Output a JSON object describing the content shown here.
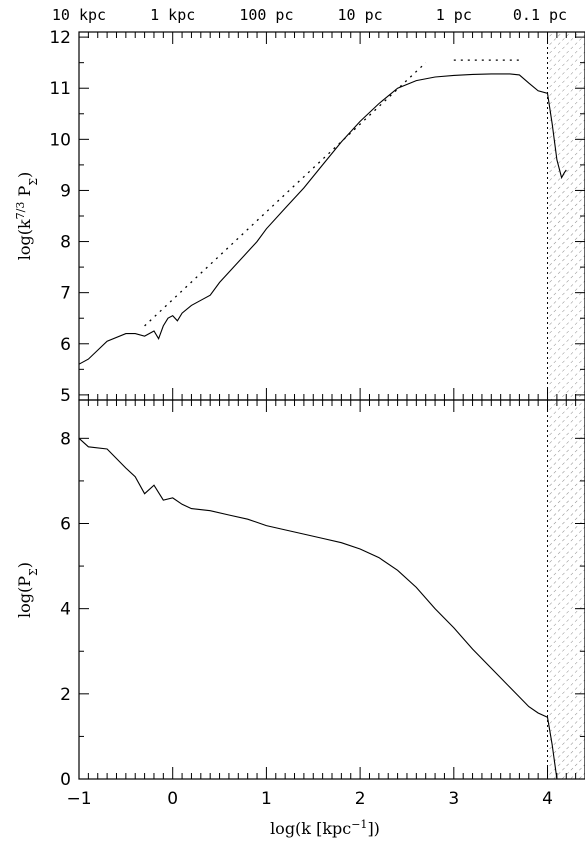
{
  "chart_data": [
    {
      "type": "line",
      "panel": "top",
      "ylabel": "log(k^7/3 P_Σ)",
      "ylabel_parts": [
        "log(k",
        "7/3",
        " P",
        "Σ",
        ")"
      ],
      "xlabel": "",
      "xlim": [
        -1,
        4.4
      ],
      "ylim": [
        4.9,
        12.1
      ],
      "yticks": [
        5,
        6,
        7,
        8,
        9,
        10,
        11,
        12
      ],
      "top_axis_labels": [
        "10 kpc",
        "1 kpc",
        "100 pc",
        "10 pc",
        "1 pc",
        "0.1 pc"
      ],
      "top_axis_positions": [
        -1,
        0,
        1,
        2,
        3,
        4
      ],
      "vertical_line_x": 4.0,
      "shaded_region_x": [
        4.0,
        4.4
      ],
      "series": [
        {
          "style": "solid",
          "x": [
            -1.0,
            -0.9,
            -0.7,
            -0.5,
            -0.4,
            -0.3,
            -0.2,
            -0.15,
            -0.1,
            -0.05,
            0.0,
            0.05,
            0.1,
            0.2,
            0.3,
            0.4,
            0.5,
            0.6,
            0.7,
            0.8,
            0.9,
            1.0,
            1.2,
            1.4,
            1.6,
            1.8,
            2.0,
            2.2,
            2.4,
            2.6,
            2.8,
            3.0,
            3.2,
            3.4,
            3.6,
            3.7,
            3.8,
            3.9,
            4.0,
            4.05,
            4.1,
            4.15,
            4.18,
            4.2
          ],
          "y": [
            5.6,
            5.7,
            6.05,
            6.2,
            6.2,
            6.15,
            6.25,
            6.1,
            6.35,
            6.5,
            6.55,
            6.45,
            6.6,
            6.75,
            6.85,
            6.95,
            7.2,
            7.4,
            7.6,
            7.8,
            8.0,
            8.25,
            8.65,
            9.05,
            9.5,
            9.95,
            10.35,
            10.7,
            11.0,
            11.15,
            11.22,
            11.25,
            11.27,
            11.28,
            11.28,
            11.26,
            11.1,
            10.95,
            10.9,
            10.3,
            9.6,
            9.25,
            9.35,
            9.4
          ]
        },
        {
          "style": "dotted",
          "x": [
            -0.3,
            2.7
          ],
          "y": [
            6.35,
            11.5
          ]
        },
        {
          "style": "dotted",
          "x": [
            3.0,
            3.7
          ],
          "y": [
            11.55,
            11.55
          ]
        }
      ]
    },
    {
      "type": "line",
      "panel": "bottom",
      "ylabel": "log(P_Σ)",
      "ylabel_parts": [
        "log(P",
        "Σ",
        ")"
      ],
      "xlabel": "log(k [kpc^-1])",
      "xlabel_parts": [
        "log(k [kpc",
        "−1",
        "])"
      ],
      "xlim": [
        -1,
        4.4
      ],
      "ylim": [
        0,
        8.9
      ],
      "xticks": [
        -1,
        0,
        1,
        2,
        3,
        4
      ],
      "xtick_labels": [
        "−1",
        "0",
        "1",
        "2",
        "3",
        "4"
      ],
      "yticks": [
        0,
        2,
        4,
        6,
        8
      ],
      "vertical_line_x": 4.0,
      "shaded_region_x": [
        4.0,
        4.4
      ],
      "series": [
        {
          "style": "solid",
          "x": [
            -1.0,
            -0.9,
            -0.7,
            -0.5,
            -0.4,
            -0.3,
            -0.2,
            -0.1,
            0.0,
            0.1,
            0.2,
            0.4,
            0.6,
            0.8,
            1.0,
            1.2,
            1.4,
            1.6,
            1.8,
            2.0,
            2.2,
            2.4,
            2.6,
            2.8,
            3.0,
            3.2,
            3.4,
            3.6,
            3.8,
            3.9,
            4.0,
            4.05,
            4.1
          ],
          "y": [
            8.0,
            7.8,
            7.75,
            7.3,
            7.1,
            6.7,
            6.9,
            6.55,
            6.6,
            6.45,
            6.35,
            6.3,
            6.2,
            6.1,
            5.95,
            5.85,
            5.75,
            5.65,
            5.55,
            5.4,
            5.2,
            4.9,
            4.5,
            4.0,
            3.55,
            3.05,
            2.6,
            2.15,
            1.7,
            1.55,
            1.45,
            0.8,
            0.0
          ]
        }
      ]
    }
  ]
}
